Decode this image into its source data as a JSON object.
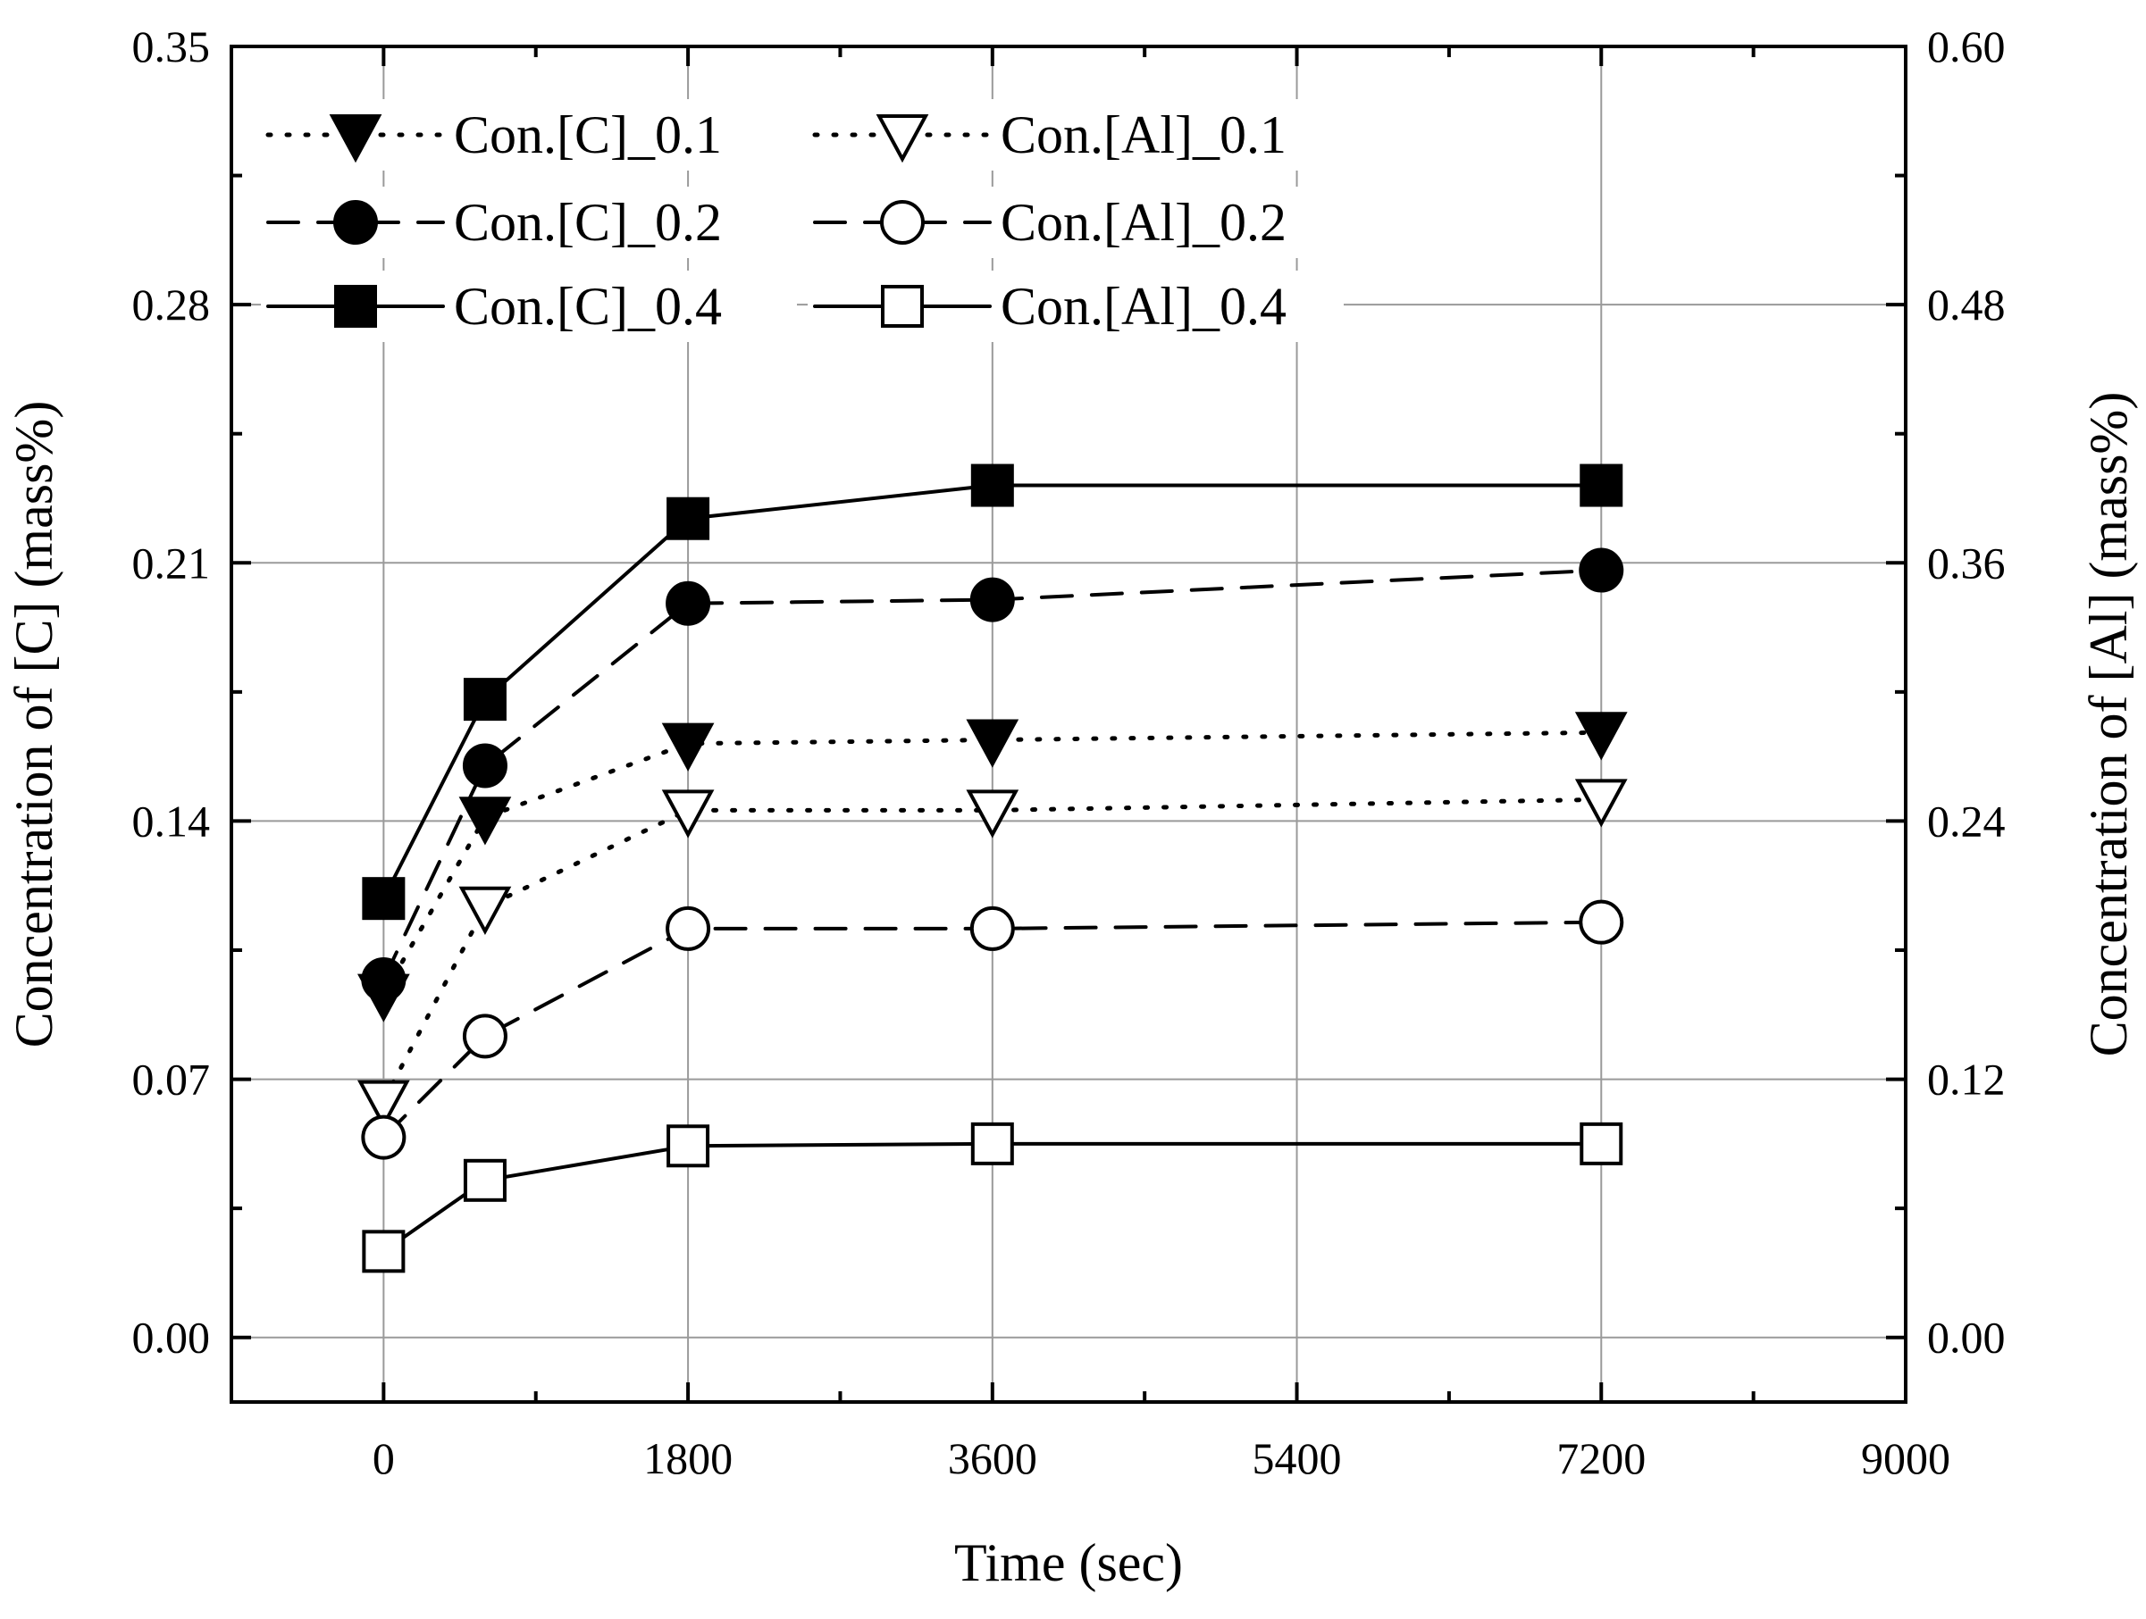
{
  "chart_data": {
    "type": "line",
    "title": "",
    "xlabel": "Time (sec)",
    "ylabel_left": "Concentration of [C] (mass%)",
    "ylabel_right": "Concentration of [Al] (mass%)",
    "xlim": [
      -900,
      9000
    ],
    "x_ticks": [
      0,
      1800,
      3600,
      5400,
      7200,
      9000
    ],
    "x_tick_labels": [
      "0",
      "1800",
      "3600",
      "5400",
      "7200",
      "9000"
    ],
    "ylim_left": [
      -0.0175,
      0.35
    ],
    "y_ticks_left": [
      0.0,
      0.07,
      0.14,
      0.21,
      0.28,
      0.35
    ],
    "y_tick_labels_left": [
      "0.00",
      "0.07",
      "0.14",
      "0.21",
      "0.28",
      "0.35"
    ],
    "ylim_right": [
      -0.03,
      0.6
    ],
    "y_ticks_right": [
      0.0,
      0.12,
      0.24,
      0.36,
      0.48,
      0.6
    ],
    "y_tick_labels_right": [
      "0.00",
      "0.12",
      "0.24",
      "0.36",
      "0.48",
      "0.60"
    ],
    "grid": true,
    "legend_position": "top-left",
    "x": [
      0,
      600,
      1800,
      3600,
      7200
    ],
    "series": [
      {
        "name": "Con.[C]_0.1",
        "axis": "left",
        "values": [
          0.093,
          0.141,
          0.161,
          0.162,
          0.164
        ],
        "marker": "triangle-down",
        "fill": "#000000",
        "dash": "dotted"
      },
      {
        "name": "Con.[Al]_0.1",
        "axis": "right",
        "values": [
          0.11,
          0.2,
          0.245,
          0.245,
          0.25
        ],
        "marker": "triangle-down",
        "fill": "#ffffff",
        "dash": "dotted"
      },
      {
        "name": "Con.[C]_0.2",
        "axis": "left",
        "values": [
          0.097,
          0.155,
          0.199,
          0.2,
          0.208
        ],
        "marker": "circle",
        "fill": "#000000",
        "dash": "dashed"
      },
      {
        "name": "Con.[Al]_0.2",
        "axis": "right",
        "values": [
          0.093,
          0.14,
          0.19,
          0.19,
          0.193
        ],
        "marker": "circle",
        "fill": "#ffffff",
        "dash": "dashed"
      },
      {
        "name": "Con.[C]_0.4",
        "axis": "left",
        "values": [
          0.119,
          0.173,
          0.222,
          0.231,
          0.231
        ],
        "marker": "square",
        "fill": "#000000",
        "dash": "solid"
      },
      {
        "name": "Con.[Al]_0.4",
        "axis": "right",
        "values": [
          0.04,
          0.073,
          0.089,
          0.09,
          0.09
        ],
        "marker": "square",
        "fill": "#ffffff",
        "dash": "solid"
      }
    ]
  }
}
